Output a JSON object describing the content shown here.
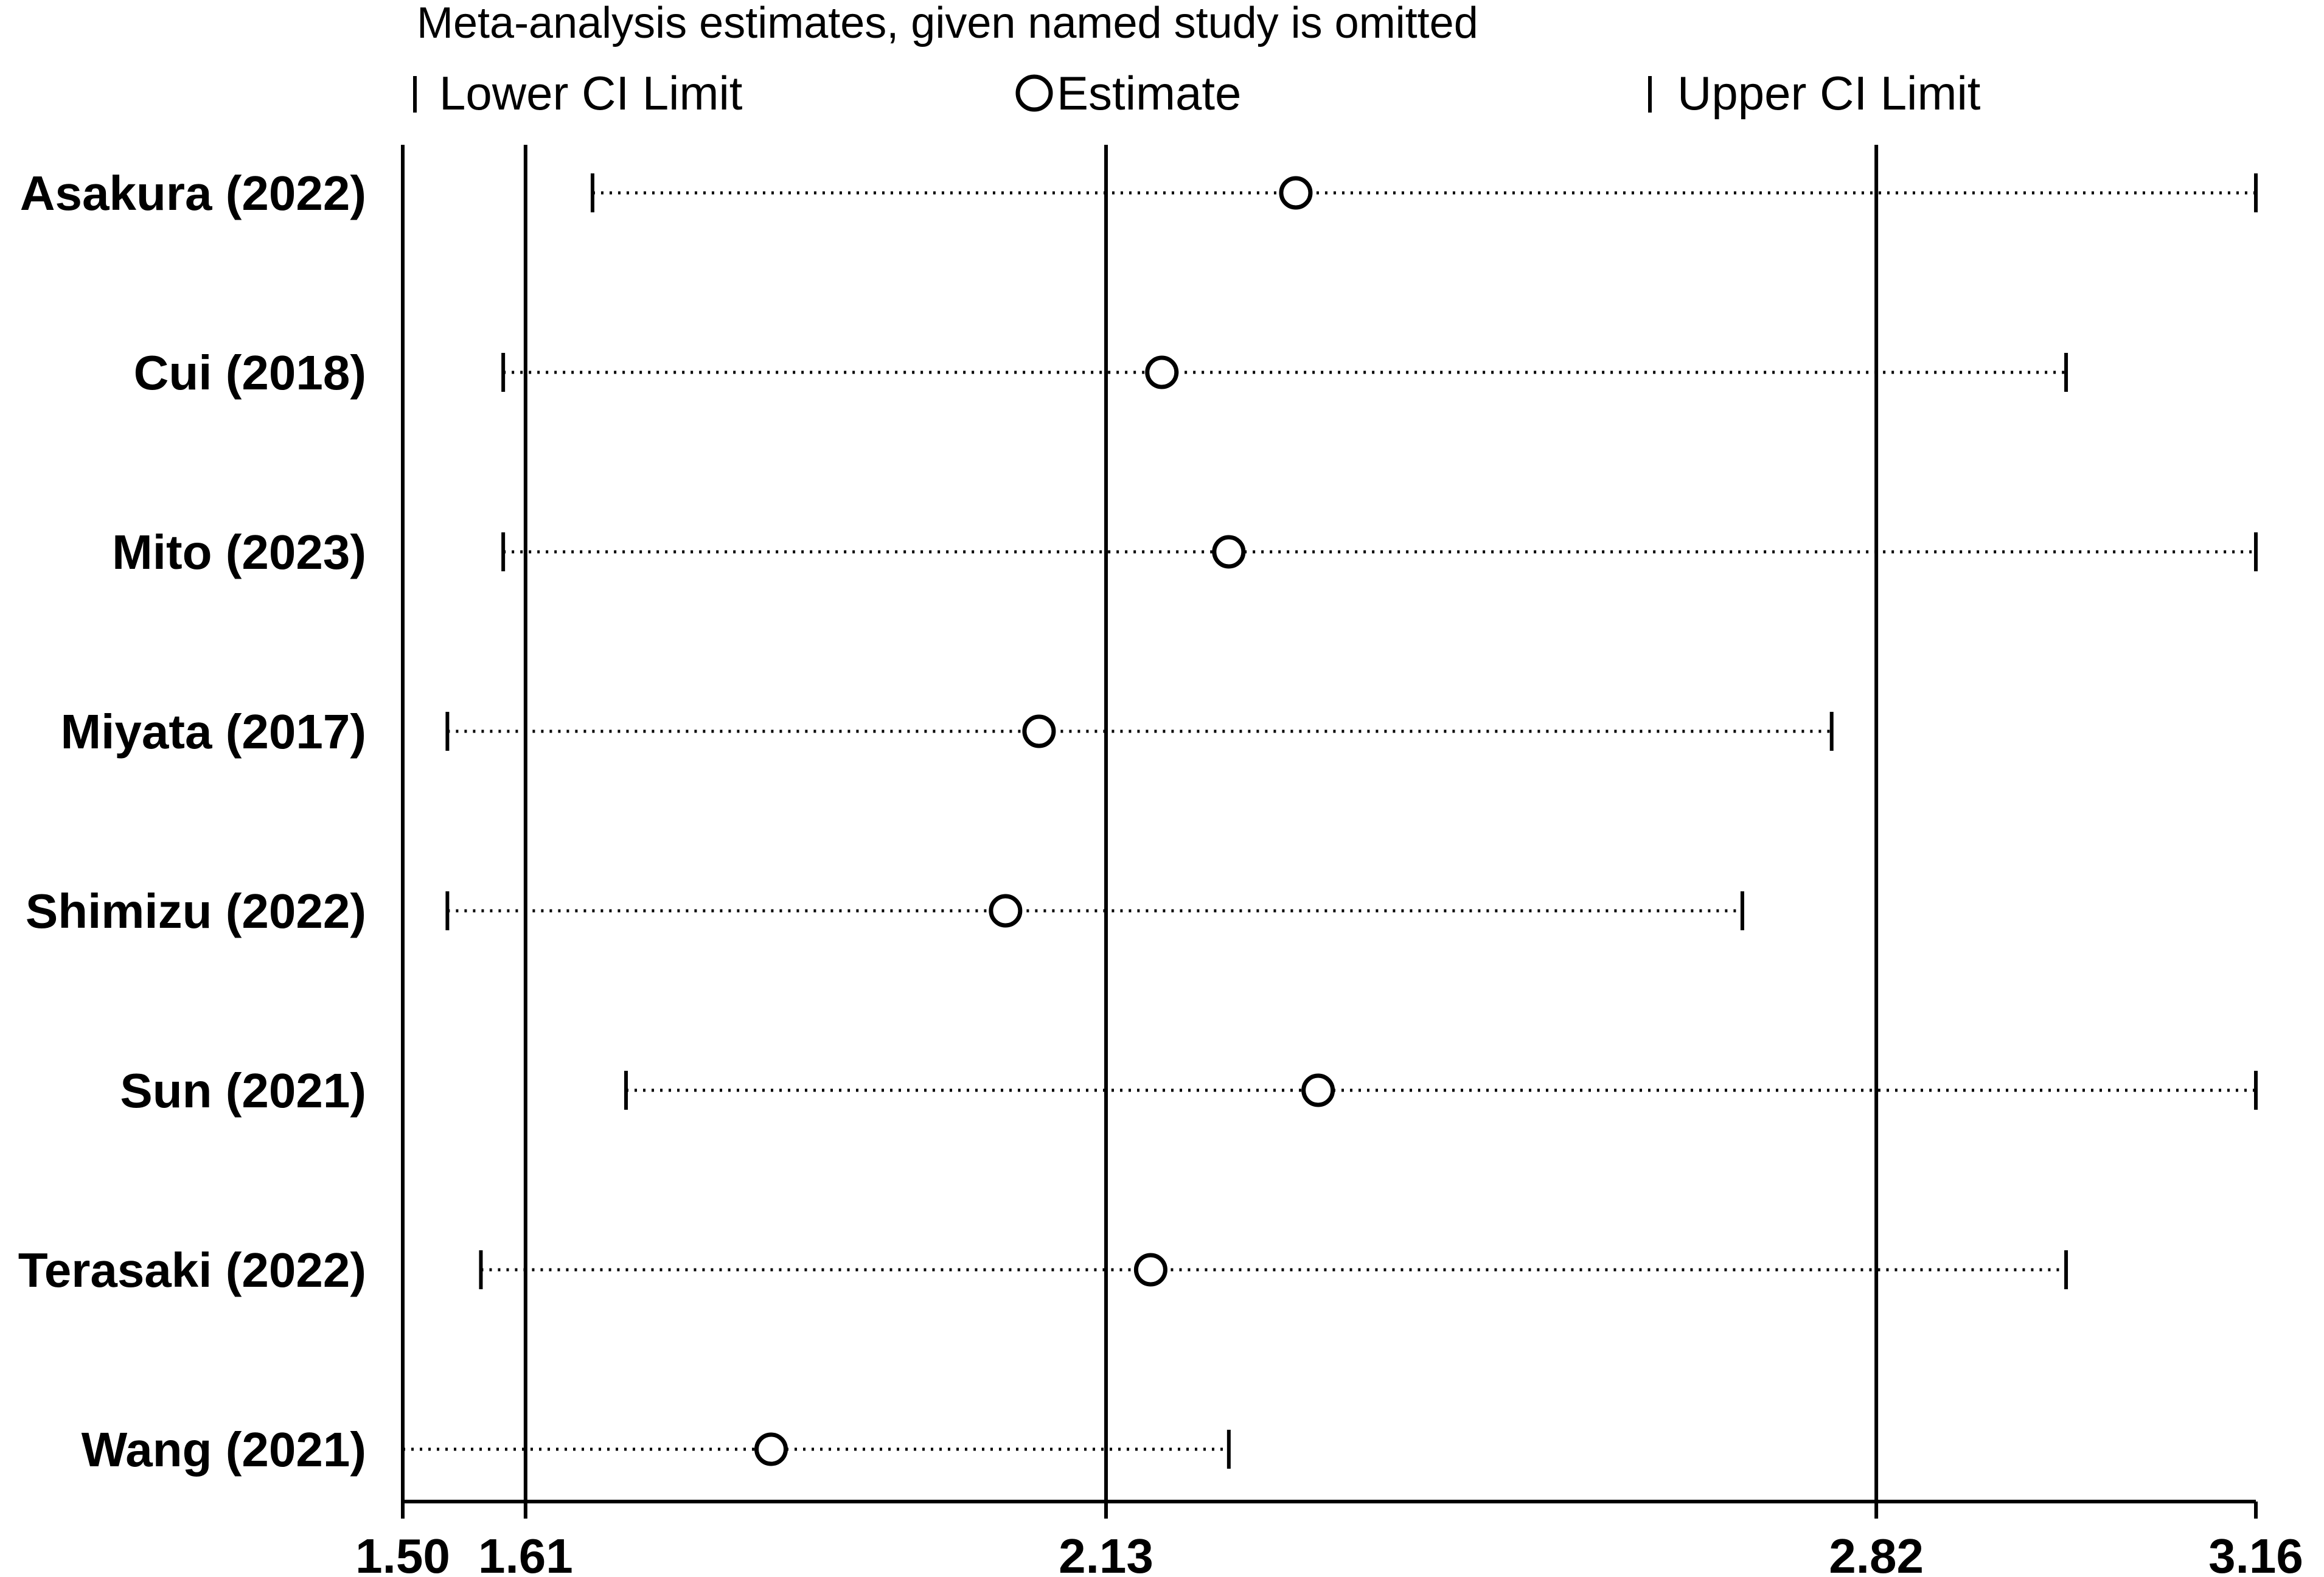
{
  "chart_data": {
    "type": "scatter",
    "title": "Meta-analysis estimates, given named study is omitted",
    "legend": {
      "placement": "top",
      "lower_label": "Lower CI Limit",
      "estimate_label": "Estimate",
      "upper_label": "Upper CI Limit"
    },
    "xlim": [
      1.5,
      3.16
    ],
    "x_ticks": [
      1.5,
      1.61,
      2.13,
      2.82,
      3.16
    ],
    "x_tick_labels": [
      "1.50",
      "1.61",
      "2.13",
      "2.82",
      "3.16"
    ],
    "reference_lines": [
      1.61,
      2.13,
      2.82
    ],
    "studies": [
      {
        "name": "Asakura (2022)",
        "lower": 1.67,
        "estimate": 2.3,
        "upper": 3.16
      },
      {
        "name": "Cui (2018)",
        "lower": 1.59,
        "estimate": 2.18,
        "upper": 2.99
      },
      {
        "name": "Mito (2023)",
        "lower": 1.59,
        "estimate": 2.24,
        "upper": 3.16
      },
      {
        "name": "Miyata (2017)",
        "lower": 1.54,
        "estimate": 2.07,
        "upper": 2.78
      },
      {
        "name": "Shimizu (2022)",
        "lower": 1.54,
        "estimate": 2.04,
        "upper": 2.7
      },
      {
        "name": "Sun (2021)",
        "lower": 1.7,
        "estimate": 2.32,
        "upper": 3.16
      },
      {
        "name": "Terasaki (2022)",
        "lower": 1.57,
        "estimate": 2.17,
        "upper": 2.99
      },
      {
        "name": "Wang (2021)",
        "lower": 1.5,
        "estimate": 1.83,
        "upper": 2.24
      }
    ]
  }
}
